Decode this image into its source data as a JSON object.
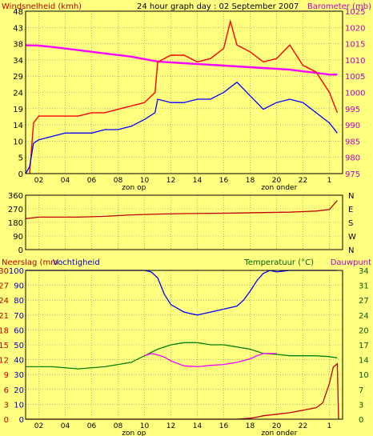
{
  "chart_data": [
    {
      "type": "line",
      "title": "24 hour graph day : 02 September 2007",
      "left_axis_label": "Windsnelheid (kmh)",
      "right_axis_label": "Barometer (mb)",
      "left_ticks": [
        "0",
        "5",
        "10",
        "14",
        "19",
        "24",
        "29",
        "34",
        "38",
        "43",
        "48"
      ],
      "right_ticks": [
        "975",
        "980",
        "985",
        "990",
        "995",
        "1000",
        "1005",
        "1010",
        "1015",
        "1020",
        "1025"
      ],
      "left_ylim": [
        0,
        48
      ],
      "right_ylim": [
        975,
        1025
      ],
      "x_ticks": [
        "02",
        "04",
        "06",
        "08",
        "10",
        "12",
        "14",
        "16",
        "18",
        "20",
        "22",
        "1"
      ],
      "xlim": [
        0,
        24
      ],
      "markers": [
        "zon op",
        "zon onder"
      ],
      "grid": true,
      "colors": {
        "wind_gust": "#ff0000",
        "wind_avg": "#0000ff",
        "barometer": "#ff00ff",
        "frame": "#000000"
      },
      "series": [
        {
          "name": "wind_gust",
          "axis": "left",
          "x": [
            0.3,
            0.6,
            1,
            2,
            3,
            4,
            5,
            6,
            7,
            8,
            9,
            9.8,
            10,
            11,
            12,
            13,
            14,
            15,
            15.5,
            16,
            17,
            18,
            19,
            20,
            21,
            22,
            23,
            23.6
          ],
          "y": [
            0,
            15,
            17,
            17,
            17,
            17,
            18,
            18,
            19,
            20,
            21,
            24,
            33,
            35,
            35,
            33,
            34,
            37,
            45,
            38,
            36,
            33,
            34,
            38,
            32,
            30,
            24,
            18
          ]
        },
        {
          "name": "wind_avg",
          "axis": "left",
          "x": [
            0,
            0.3,
            0.6,
            1,
            2,
            3,
            4,
            5,
            6,
            7,
            8,
            9,
            9.8,
            10,
            11,
            12,
            13,
            14,
            15,
            16,
            17,
            18,
            19,
            20,
            21,
            22,
            23,
            23.6
          ],
          "y": [
            0,
            2,
            9,
            10,
            11,
            12,
            12,
            12,
            13,
            13,
            14,
            16,
            18,
            22,
            21,
            21,
            22,
            22,
            24,
            27,
            23,
            19,
            21,
            22,
            21,
            18,
            15,
            12
          ]
        },
        {
          "name": "barometer",
          "axis": "right",
          "x": [
            0,
            1,
            2,
            4,
            6,
            8,
            10,
            12,
            14,
            16,
            18,
            20,
            22,
            23,
            23.6
          ],
          "y": [
            1014.5,
            1014.4,
            1014,
            1013,
            1012,
            1011,
            1009.5,
            1009,
            1008.5,
            1008,
            1007.5,
            1007,
            1006,
            1005.5,
            1005.5
          ]
        }
      ]
    },
    {
      "type": "line",
      "left_axis_label": "",
      "right_axis_label": "",
      "left_ticks": [
        "0",
        "90",
        "180",
        "270",
        "360"
      ],
      "right_ticks": [
        "N",
        "W",
        "S",
        "E",
        "N"
      ],
      "ylim": [
        0,
        360
      ],
      "xlim": [
        0,
        24
      ],
      "grid": true,
      "colors": {
        "direction": "#c00000"
      },
      "series": [
        {
          "name": "wind_direction",
          "x": [
            0,
            1,
            2,
            4,
            6,
            8,
            10,
            12,
            14,
            16,
            18,
            20,
            22,
            23,
            23.6
          ],
          "y": [
            205,
            215,
            215,
            215,
            220,
            230,
            235,
            238,
            240,
            242,
            245,
            248,
            255,
            265,
            325
          ]
        }
      ]
    },
    {
      "type": "line",
      "left_axis_label_1": "Neerslag (mm",
      "left_axis_label_2": "Vochtigheid",
      "right_axis_label_1": "Temperatuur (°C)",
      "right_axis_label_2": "Dauwpunt",
      "left_outer_ticks": [
        "0",
        "3",
        "6",
        "9",
        "12",
        "15",
        "18",
        "21",
        "24",
        "27",
        "30"
      ],
      "left_inner_ticks": [
        "0",
        "10",
        "20",
        "30",
        "40",
        "50",
        "60",
        "70",
        "80",
        "90",
        "100"
      ],
      "right_ticks": [
        "0",
        "3",
        "7",
        "10",
        "14",
        "17",
        "20",
        "24",
        "27",
        "31",
        "34"
      ],
      "rain_ylim": [
        0,
        30
      ],
      "humidity_ylim": [
        0,
        100
      ],
      "temp_ylim": [
        0,
        34
      ],
      "x_ticks": [
        "02",
        "04",
        "06",
        "08",
        "10",
        "12",
        "14",
        "16",
        "18",
        "20",
        "22",
        "1"
      ],
      "xlim": [
        0,
        24
      ],
      "markers": [
        "zon op",
        "zon onder"
      ],
      "grid": true,
      "colors": {
        "humidity": "#0000ff",
        "temperature": "#008000",
        "dewpoint": "#ff00ff",
        "rain": "#c00000"
      },
      "series": [
        {
          "name": "humidity",
          "axis": "left_inner",
          "x": [
            0,
            2,
            4,
            6,
            8,
            9,
            9.5,
            10,
            10.5,
            11,
            12,
            13,
            14,
            15,
            16,
            16.5,
            17,
            17.5,
            18,
            18.5,
            19,
            20,
            22,
            23,
            23.6
          ],
          "y": [
            100,
            100,
            100,
            100,
            100,
            100,
            99,
            95,
            84,
            77,
            72,
            70,
            72,
            74,
            76,
            80,
            86,
            93,
            98,
            100,
            99,
            100,
            100,
            100,
            100
          ]
        },
        {
          "name": "temperature",
          "axis": "right",
          "x": [
            0,
            1,
            2,
            4,
            6,
            8,
            9,
            10,
            11,
            12,
            13,
            14,
            15,
            16,
            17,
            18,
            19,
            20,
            22,
            23,
            23.6
          ],
          "y": [
            12,
            12,
            12,
            11.5,
            12,
            13,
            14.5,
            16,
            17,
            17.5,
            17.5,
            17,
            17,
            16.5,
            16,
            15,
            14.8,
            14.5,
            14.5,
            14.3,
            14
          ]
        },
        {
          "name": "dewpoint",
          "axis": "right",
          "x": [
            9,
            9.5,
            10,
            10.5,
            11,
            12,
            13,
            14,
            15,
            16,
            17,
            17.5,
            18,
            19
          ],
          "y": [
            14.5,
            15,
            14.7,
            14.2,
            13.3,
            12.2,
            12,
            12.3,
            12.5,
            13,
            13.8,
            14.5,
            15,
            15
          ]
        },
        {
          "name": "rain",
          "axis": "left_outer",
          "x": [
            0,
            16,
            17,
            17.5,
            18,
            19,
            20,
            21,
            22,
            22.5,
            23,
            23.3,
            23.6,
            23.7
          ],
          "y": [
            0,
            0,
            0.2,
            0.4,
            0.7,
            1,
            1.3,
            1.8,
            2.3,
            3.3,
            7.2,
            10.5,
            11.2,
            0
          ]
        }
      ]
    }
  ]
}
